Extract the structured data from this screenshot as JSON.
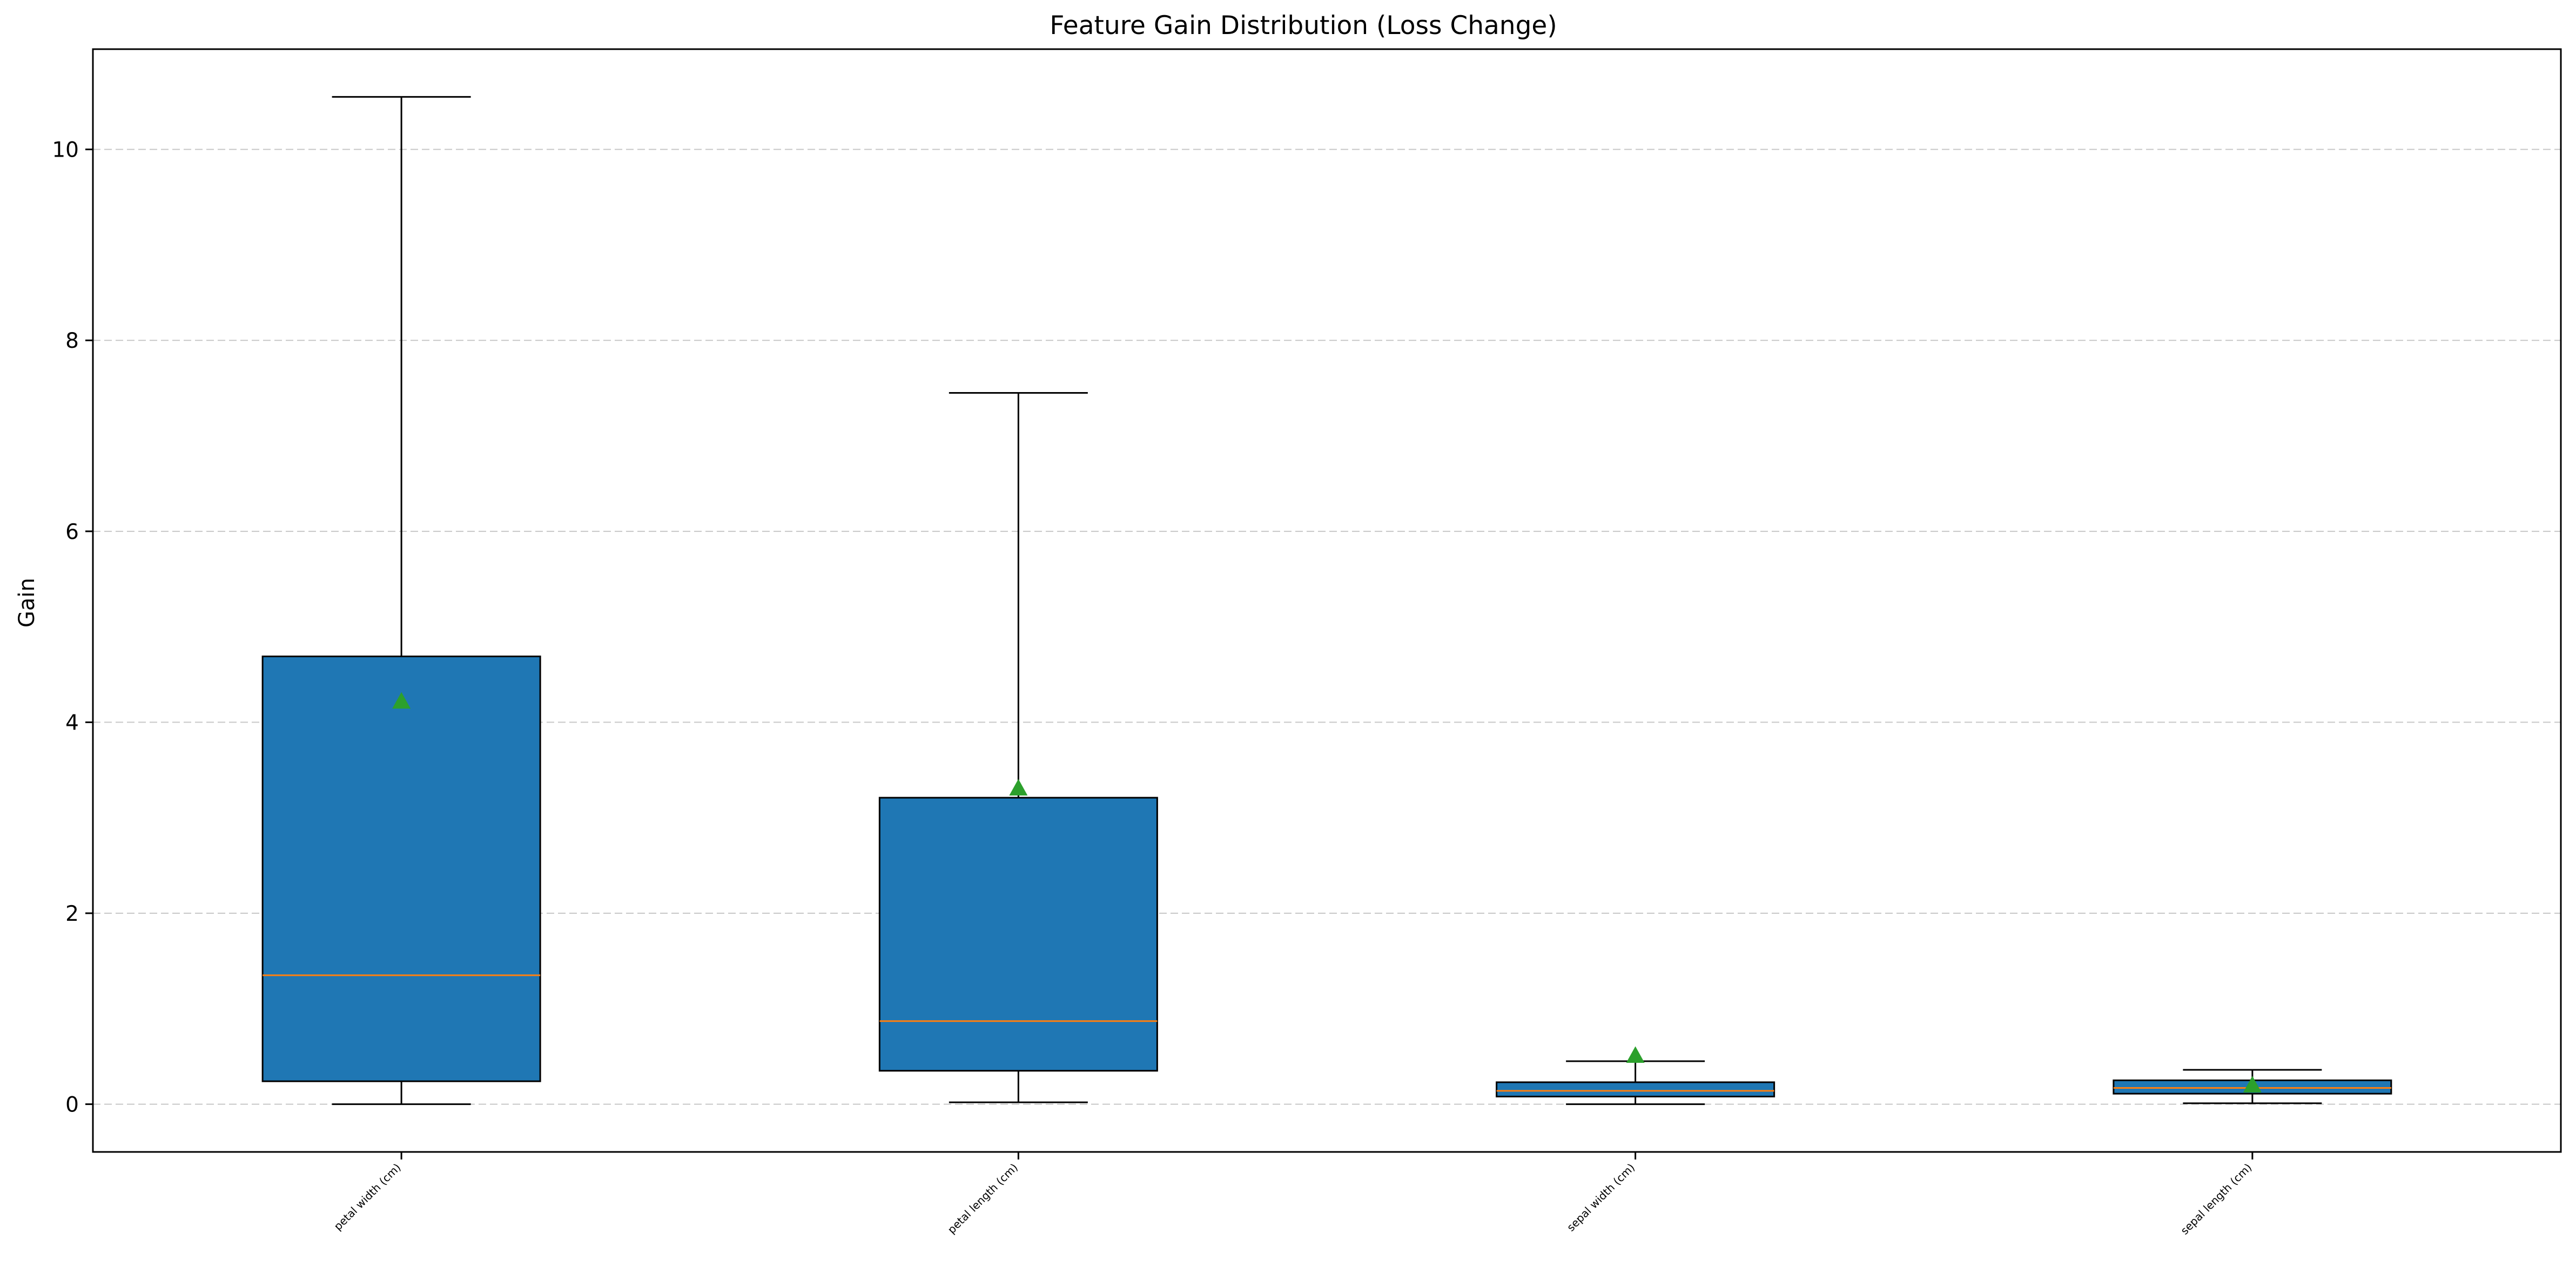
{
  "chart_data": {
    "type": "box",
    "title": "Feature Gain Distribution (Loss Change)",
    "xlabel": "",
    "ylabel": "Gain",
    "categories": [
      "petal width (cm)",
      "petal length (cm)",
      "sepal width (cm)",
      "sepal length (cm)"
    ],
    "ylim": [
      -0.5,
      11.05
    ],
    "yticks": [
      0,
      2,
      4,
      6,
      8,
      10
    ],
    "grid": {
      "y": true,
      "x": false,
      "style": "dashed"
    },
    "boxes": [
      {
        "category": "petal width (cm)",
        "whisker_low": 0.0,
        "q1": 0.24,
        "median": 1.35,
        "q3": 4.69,
        "whisker_high": 10.55,
        "mean": 4.22
      },
      {
        "category": "petal length (cm)",
        "whisker_low": 0.02,
        "q1": 0.35,
        "median": 0.87,
        "q3": 3.21,
        "whisker_high": 7.45,
        "mean": 3.31
      },
      {
        "category": "sepal width (cm)",
        "whisker_low": 0.0,
        "q1": 0.08,
        "median": 0.14,
        "q3": 0.23,
        "whisker_high": 0.45,
        "mean": 0.51
      },
      {
        "category": "sepal length (cm)",
        "whisker_low": 0.01,
        "q1": 0.11,
        "median": 0.17,
        "q3": 0.25,
        "whisker_high": 0.36,
        "mean": 0.2
      }
    ],
    "colors": {
      "box_fill": "#1f77b4",
      "box_edge": "#000000",
      "median_line": "#ff7f0e",
      "mean_marker": "#2ca02c",
      "grid": "#b0b0b0"
    }
  }
}
